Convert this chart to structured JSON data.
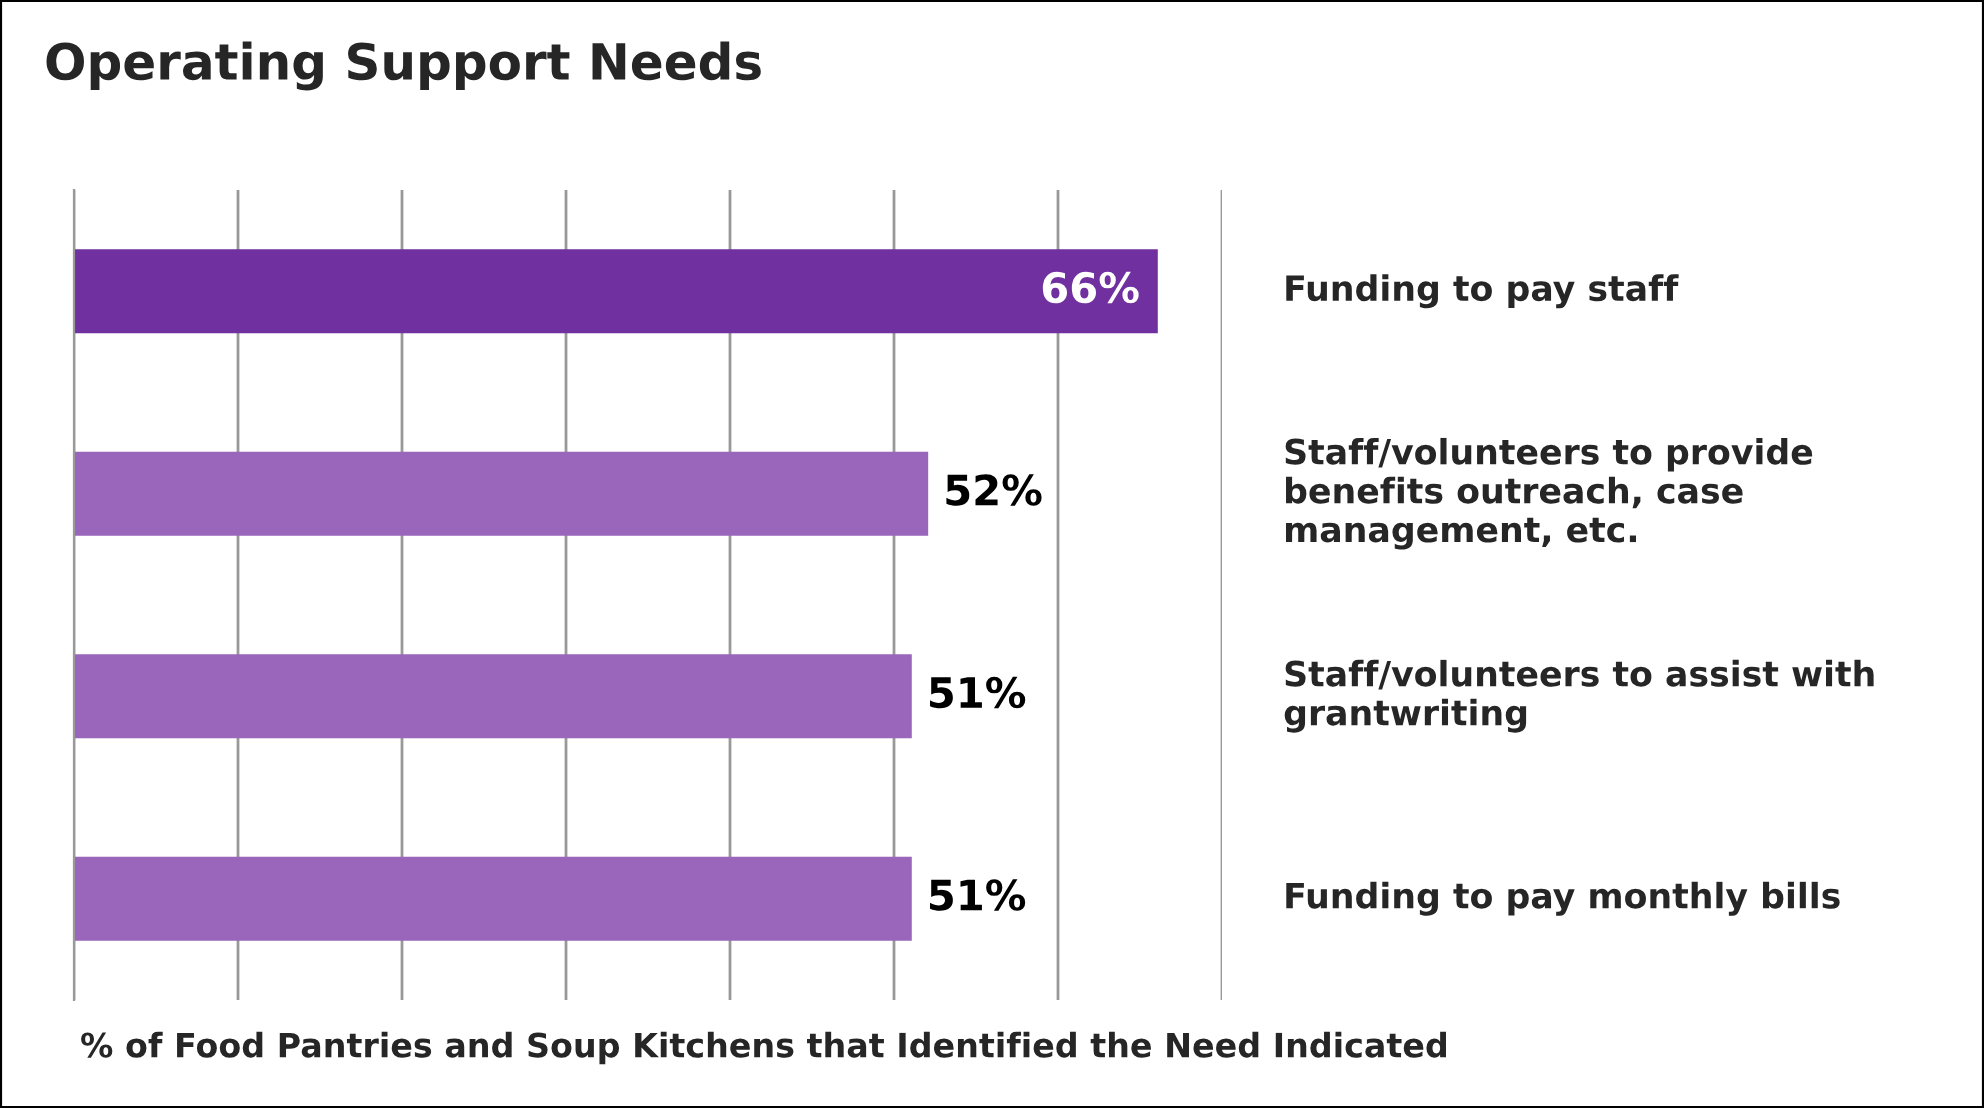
{
  "chart_data": {
    "type": "bar",
    "orientation": "horizontal",
    "title": "Operating Support Needs",
    "categories": [
      "Funding to pay staff",
      "Staff/volunteers to provide benefits outreach, case management, etc.",
      "Staff/volunteers to assist with grantwriting",
      "Funding to pay monthly bills"
    ],
    "values": [
      66,
      52,
      51,
      51
    ],
    "colors": [
      "#7030a0",
      "#9966bb",
      "#9966bb",
      "#9966bb"
    ],
    "value_labels": [
      "66%",
      "52%",
      "51%",
      "51%"
    ],
    "xlim": [
      0,
      70
    ],
    "xticks": [
      {
        "value": 0,
        "label": null
      },
      {
        "value": 10,
        "label": null
      },
      {
        "value": 20,
        "label": null
      },
      {
        "value": 30,
        "label": null
      },
      {
        "value": 40,
        "label": null
      },
      {
        "value": 50,
        "label": null
      },
      {
        "value": 60,
        "label": null
      },
      {
        "value": 70,
        "label": null
      }
    ],
    "grid": "x",
    "xlabel": "% of Food Pantries and Soup Kitchens that Identified the Need Indicated"
  }
}
